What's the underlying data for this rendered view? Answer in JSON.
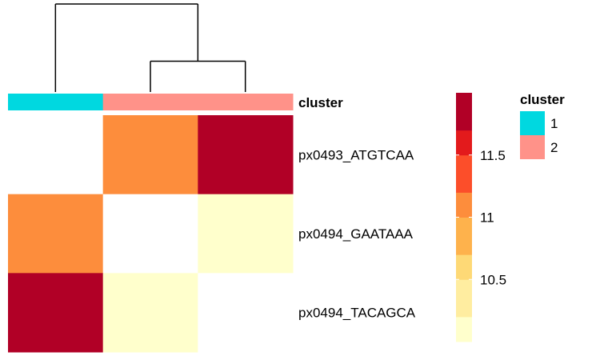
{
  "chart_data": {
    "type": "heatmap",
    "rows": [
      "px0493_ATGTCAA",
      "px0494_GAATAAA",
      "px0494_TACAGCA"
    ],
    "columns_count": 3,
    "values": [
      [
        null,
        11.2,
        12.0
      ],
      [
        11.2,
        null,
        10.05
      ],
      [
        12.0,
        10.05,
        null
      ]
    ],
    "annotation": {
      "label": "cluster",
      "column_clusters": [
        "1",
        "2",
        "2"
      ]
    },
    "dendrogram": {
      "merges": [
        {
          "left": 2,
          "right": 3,
          "height": 0.35
        },
        {
          "left": 1,
          "right": "2+3",
          "height": 1.0
        }
      ]
    },
    "color_scale": {
      "min": 10.0,
      "max": 12.0,
      "colors": [
        "#ffffcc",
        "#ffeda0",
        "#fed976",
        "#feb24c",
        "#fd8d3c",
        "#fc4e2a",
        "#e31a1c",
        "#b10026"
      ],
      "ticks": [
        10.5,
        11,
        11.5
      ],
      "tick_labels": [
        "10.5",
        "11",
        "11.5"
      ],
      "missing_color": "#ffffff"
    },
    "legend": {
      "title": "cluster",
      "entries": [
        {
          "label": "1",
          "color": "#00d8e0"
        },
        {
          "label": "2",
          "color": "#ff9289"
        }
      ]
    }
  }
}
